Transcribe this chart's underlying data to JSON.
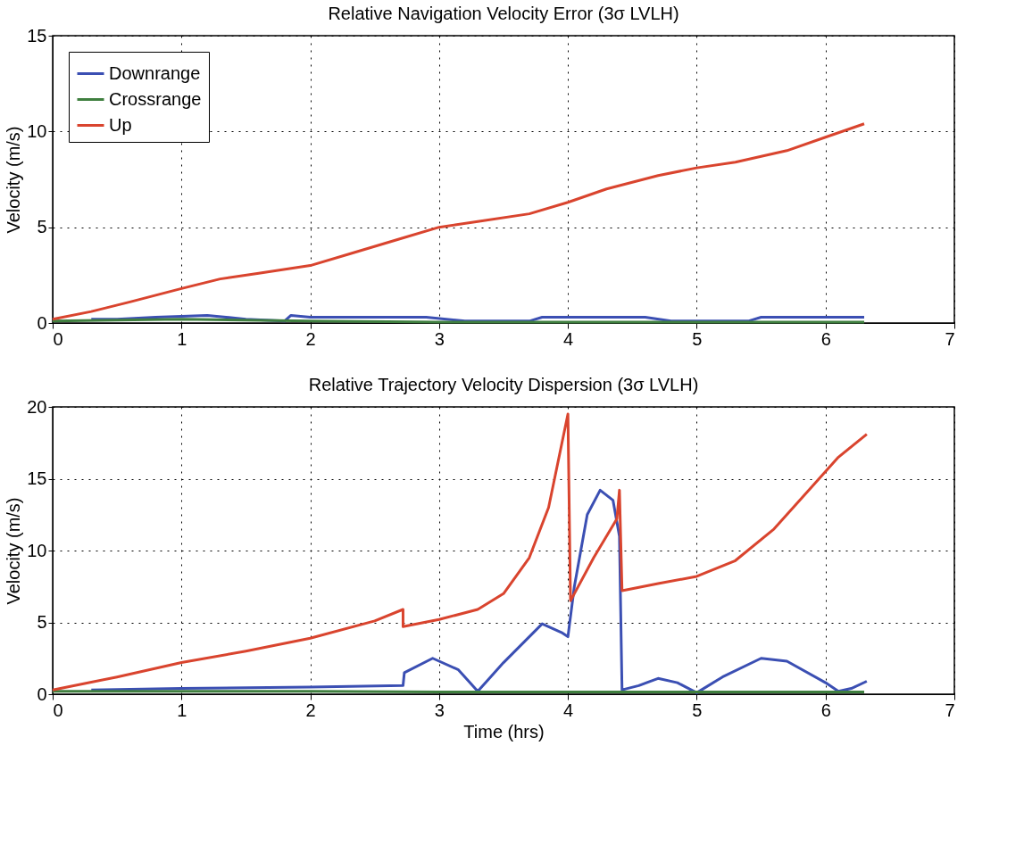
{
  "chart_data": [
    {
      "type": "line",
      "title": "Relative Navigation Velocity Error (3σ LVLH)",
      "ylabel": "Velocity (m/s)",
      "xlim": [
        0,
        7
      ],
      "xticks": [
        0,
        1,
        2,
        3,
        4,
        5,
        6,
        7
      ],
      "ylim": [
        0,
        15
      ],
      "yticks": [
        0,
        5,
        10,
        15
      ],
      "grid": true,
      "legend": "top left",
      "line_style": "solid",
      "series": [
        {
          "name": "Downrange",
          "color": "#3b4fb3",
          "x": [
            0.3,
            0.5,
            0.8,
            1.2,
            1.5,
            1.8,
            1.85,
            2,
            2.2,
            2.9,
            3.2,
            3.7,
            3.8,
            4.6,
            4.8,
            5.4,
            5.5,
            6.3
          ],
          "values": [
            0.2,
            0.2,
            0.3,
            0.4,
            0.2,
            0.1,
            0.4,
            0.3,
            0.3,
            0.3,
            0.1,
            0.1,
            0.3,
            0.3,
            0.1,
            0.1,
            0.3,
            0.3
          ]
        },
        {
          "name": "Crossrange",
          "color": "#3f7f3f",
          "x": [
            0,
            1,
            2,
            3,
            4,
            5,
            6.3
          ],
          "values": [
            0.1,
            0.2,
            0.1,
            0.05,
            0.05,
            0.05,
            0.05
          ]
        },
        {
          "name": "Up",
          "color": "#d9442e",
          "x": [
            0,
            0.3,
            0.6,
            1,
            1.3,
            1.6,
            2,
            2.3,
            2.7,
            3,
            3.3,
            3.7,
            4,
            4.3,
            4.7,
            5,
            5.3,
            5.7,
            6,
            6.3
          ],
          "values": [
            0.2,
            0.6,
            1.1,
            1.8,
            2.3,
            2.6,
            3.0,
            3.6,
            4.4,
            5.0,
            5.3,
            5.7,
            6.3,
            7.0,
            7.7,
            8.1,
            8.4,
            9.0,
            9.7,
            10.4
          ]
        }
      ]
    },
    {
      "type": "line",
      "title": "Relative Trajectory Velocity Dispersion (3σ LVLH)",
      "xlabel": "Time (hrs)",
      "ylabel": "Velocity (m/s)",
      "xlim": [
        0,
        7
      ],
      "xticks": [
        0,
        1,
        2,
        3,
        4,
        5,
        6,
        7
      ],
      "ylim": [
        0,
        20
      ],
      "yticks": [
        0,
        5,
        10,
        15,
        20
      ],
      "grid": true,
      "legend": "top left",
      "line_style": "solid",
      "series": [
        {
          "name": "Downrange",
          "color": "#3b4fb3",
          "x": [
            0.3,
            1,
            2,
            2.72,
            2.73,
            2.95,
            3.15,
            3.3,
            3.5,
            3.8,
            3.95,
            4.0,
            4.05,
            4.15,
            4.25,
            4.35,
            4.4,
            4.42,
            4.55,
            4.7,
            4.85,
            5.0,
            5.2,
            5.5,
            5.7,
            6.0,
            6.1,
            6.2,
            6.32
          ],
          "values": [
            0.3,
            0.4,
            0.5,
            0.6,
            1.5,
            2.5,
            1.7,
            0.2,
            2.2,
            4.9,
            4.3,
            4.0,
            7.5,
            12.5,
            14.2,
            13.5,
            11,
            0.3,
            0.6,
            1.1,
            0.8,
            0.1,
            1.2,
            2.5,
            2.3,
            0.8,
            0.2,
            0.4,
            0.9
          ]
        },
        {
          "name": "Crossrange",
          "color": "#3f7f3f",
          "x": [
            0,
            1,
            2,
            3,
            4,
            5,
            6.3
          ],
          "values": [
            0.2,
            0.2,
            0.2,
            0.15,
            0.15,
            0.15,
            0.15
          ]
        },
        {
          "name": "Up",
          "color": "#d9442e",
          "x": [
            0,
            0.5,
            1,
            1.5,
            2,
            2.5,
            2.72,
            2.72,
            3,
            3.3,
            3.5,
            3.7,
            3.85,
            4,
            4.02,
            4.2,
            4.38,
            4.4,
            4.42,
            4.7,
            5,
            5.3,
            5.6,
            5.9,
            6.1,
            6.32
          ],
          "values": [
            0.3,
            1.2,
            2.2,
            3.0,
            3.9,
            5.1,
            5.9,
            4.7,
            5.2,
            5.9,
            7.0,
            9.5,
            13,
            19.5,
            6.5,
            9.5,
            12.2,
            14.2,
            7.2,
            7.7,
            8.2,
            9.3,
            11.5,
            14.5,
            16.5,
            18.1
          ]
        }
      ]
    }
  ]
}
